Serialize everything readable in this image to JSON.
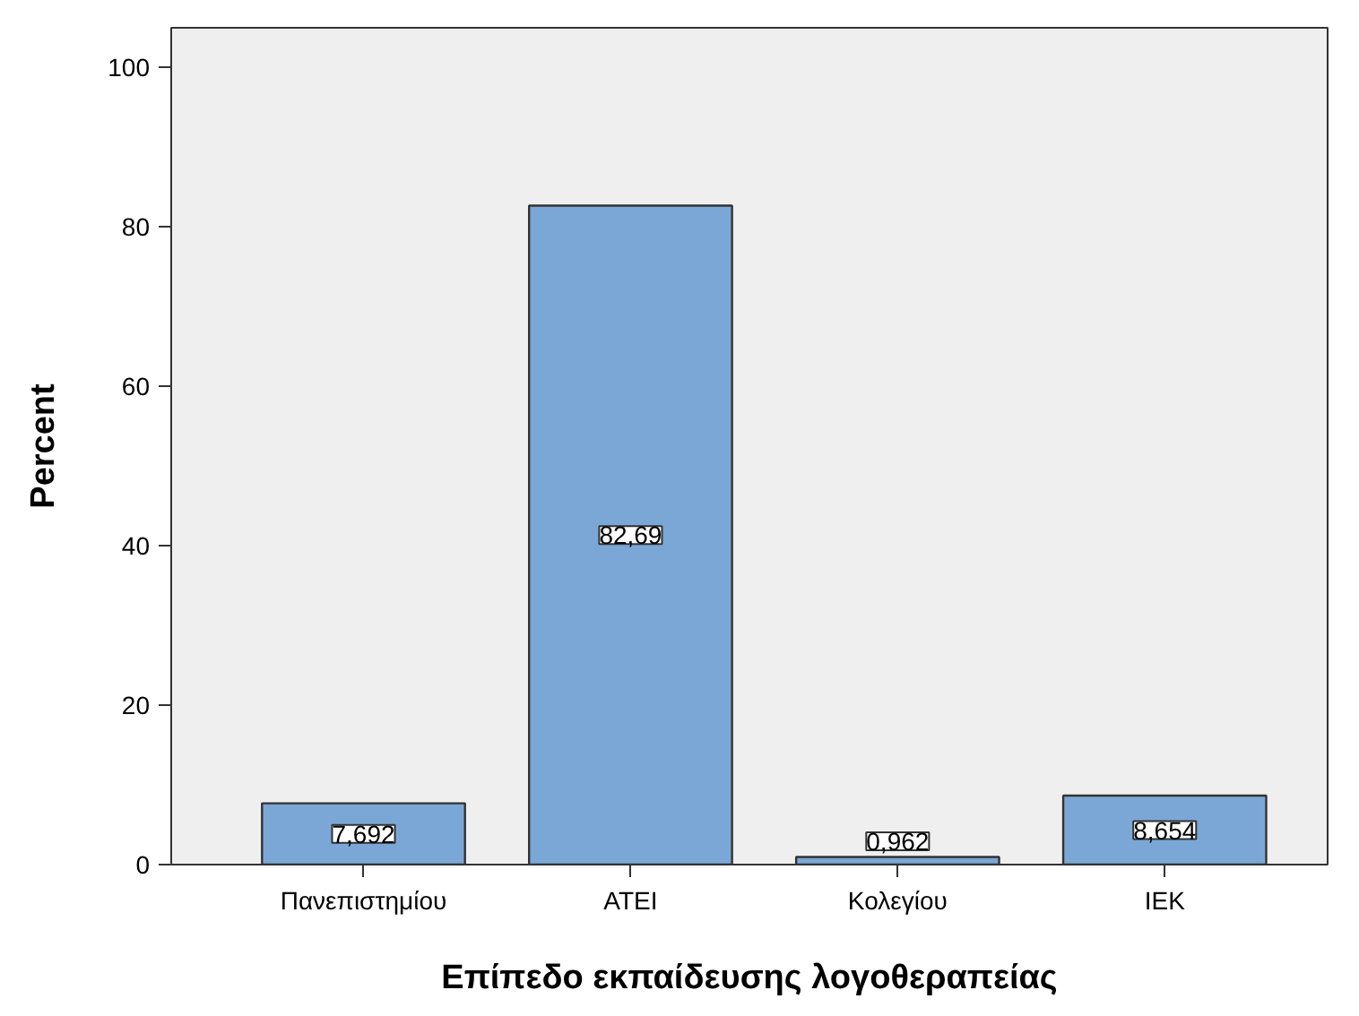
{
  "chart_data": {
    "type": "bar",
    "xlabel": "Επίπεδο εκπαίδευσης λογοθεραπείας",
    "ylabel": "Percent",
    "categories": [
      "Πανεπιστημίου",
      "ΑΤΕΙ",
      "Κολεγίου",
      "ΙΕΚ"
    ],
    "values": [
      7.692,
      82.69,
      0.962,
      8.654
    ],
    "value_labels": [
      "7,692",
      "82,69",
      "0,962",
      "8,654"
    ],
    "color": "#7ba7d6",
    "ylim": [
      0,
      105
    ],
    "yticks": [
      0,
      20,
      40,
      60,
      80,
      100
    ],
    "grid": false
  }
}
